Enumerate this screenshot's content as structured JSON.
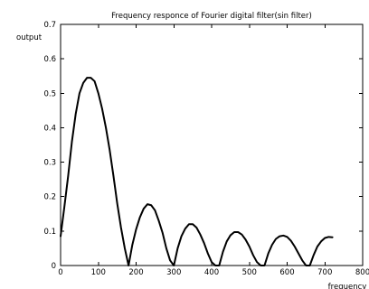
{
  "chart_data": {
    "type": "line",
    "title": "Frequency responce of Fourier digital filter(sin filter)",
    "xlabel": "frequency",
    "ylabel": "output",
    "xlim": [
      0,
      800
    ],
    "ylim": [
      0,
      0.7
    ],
    "xticks": [
      0,
      100,
      200,
      300,
      400,
      500,
      600,
      700,
      800
    ],
    "yticks": [
      0,
      0.1,
      0.2,
      0.3,
      0.4,
      0.5,
      0.6,
      0.7
    ],
    "xtick_labels": [
      "0",
      "100",
      "200",
      "300",
      "400",
      "500",
      "600",
      "700",
      "800"
    ],
    "ytick_labels": [
      "0",
      "0.1",
      "0.2",
      "0.3",
      "0.4",
      "0.5",
      "0.6",
      "0.7"
    ],
    "grid": false,
    "series": [
      {
        "x": [
          0,
          10,
          20,
          30,
          40,
          50,
          60,
          70,
          80,
          90,
          100,
          110,
          120,
          130,
          140,
          150,
          160,
          170,
          180,
          190,
          200,
          210,
          220,
          230,
          240,
          250,
          260,
          270,
          280,
          290,
          300,
          310,
          320,
          330,
          340,
          350,
          360,
          370,
          380,
          390,
          400,
          410,
          420,
          430,
          440,
          450,
          460,
          470,
          480,
          490,
          500,
          510,
          520,
          530,
          540,
          550,
          560,
          570,
          580,
          590,
          600,
          610,
          620,
          630,
          640,
          650,
          660,
          670,
          680,
          690,
          700,
          710,
          720
        ],
        "y": [
          0.085,
          0.17,
          0.26,
          0.36,
          0.44,
          0.5,
          0.53,
          0.545,
          0.545,
          0.535,
          0.5,
          0.455,
          0.4,
          0.335,
          0.26,
          0.18,
          0.11,
          0.05,
          0.0,
          0.06,
          0.105,
          0.14,
          0.165,
          0.178,
          0.175,
          0.16,
          0.13,
          0.095,
          0.05,
          0.015,
          0.0,
          0.05,
          0.085,
          0.107,
          0.12,
          0.12,
          0.11,
          0.09,
          0.065,
          0.035,
          0.01,
          0.0,
          0.0,
          0.04,
          0.07,
          0.088,
          0.097,
          0.097,
          0.09,
          0.075,
          0.055,
          0.03,
          0.01,
          0.0,
          0.0,
          0.035,
          0.06,
          0.077,
          0.085,
          0.087,
          0.083,
          0.072,
          0.055,
          0.035,
          0.015,
          0.0,
          0.0,
          0.03,
          0.055,
          0.07,
          0.08,
          0.083,
          0.082
        ]
      }
    ]
  }
}
